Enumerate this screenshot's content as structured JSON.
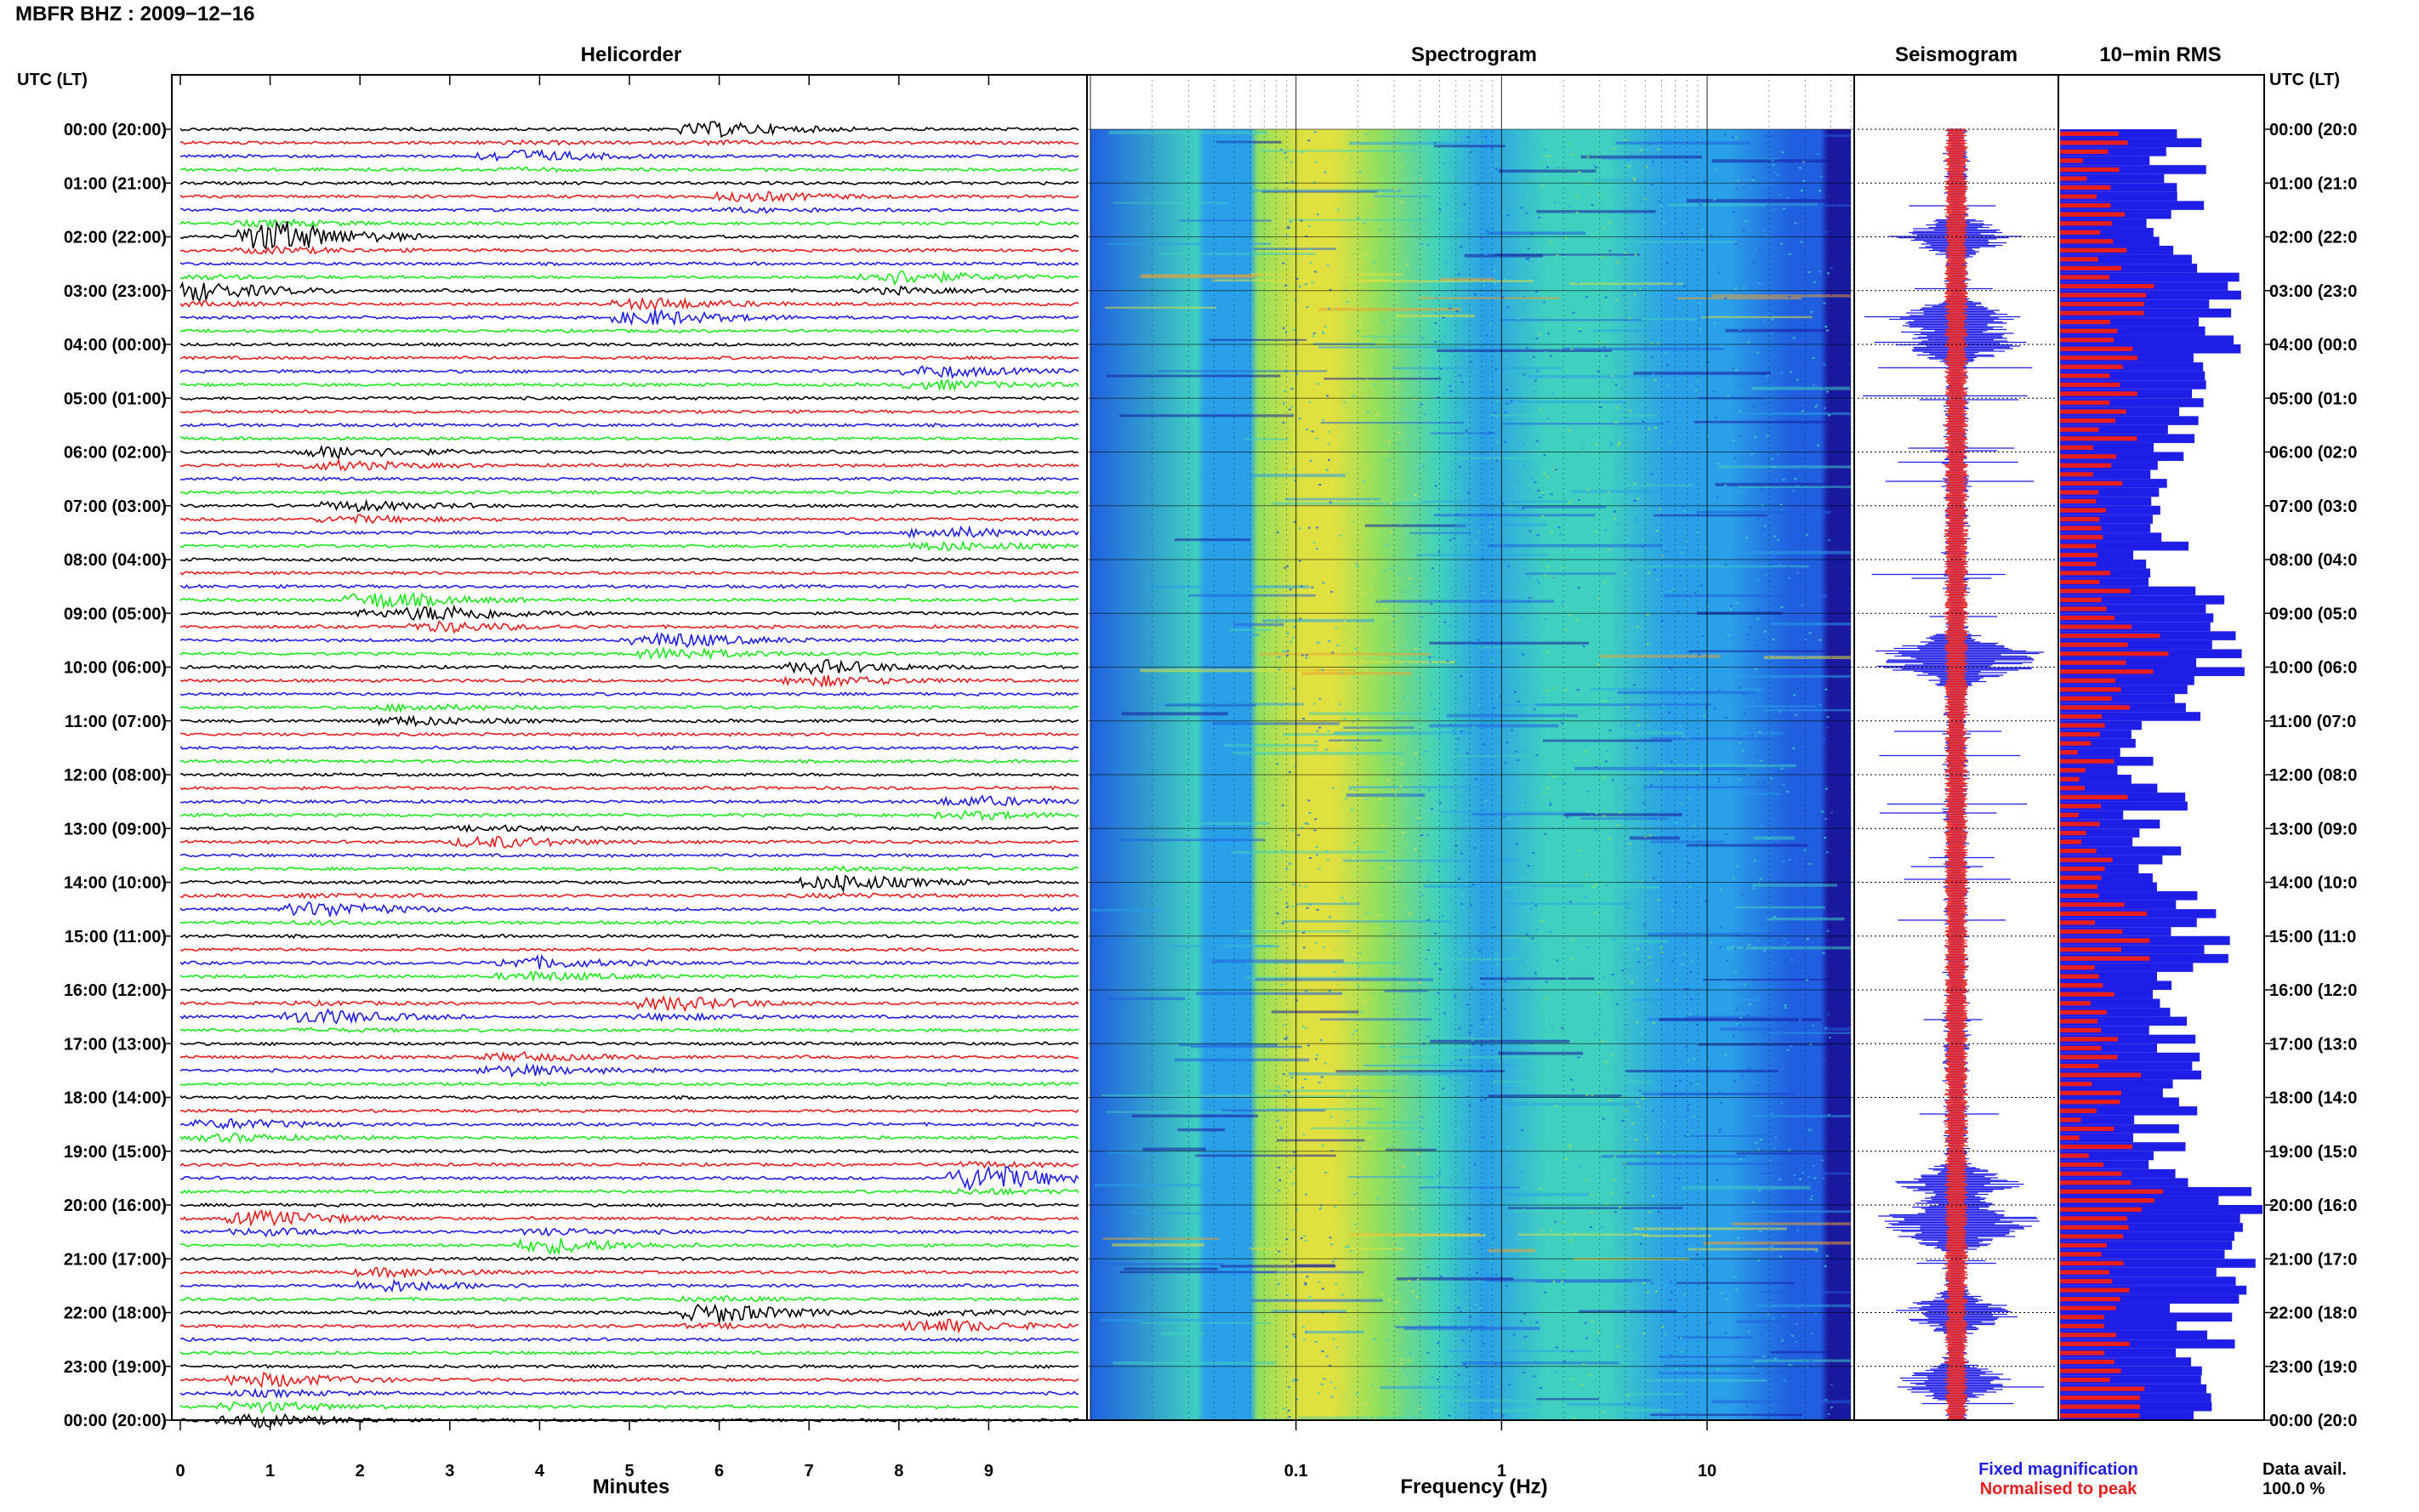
{
  "header": {
    "title": "MBFR BHZ : 2009−12−16"
  },
  "axis_time_label": "UTC (LT)",
  "panels": {
    "helicorder": "Helicorder",
    "spectrogram": "Spectrogram",
    "seismogram": "Seismogram",
    "rms": "10−min RMS"
  },
  "legend": {
    "fixed": "Fixed magnification",
    "normalised": "Normalised to peak",
    "fixed_color": "#1e1ee6",
    "normalised_color": "#e61e1e"
  },
  "data_avail": {
    "label": "Data avail.",
    "value": "100.0 %"
  },
  "chart_data": [
    {
      "type": "helicorder",
      "title": "Helicorder",
      "xlabel": "Minutes",
      "xticks": [
        "0",
        "1",
        "2",
        "3",
        "4",
        "5",
        "6",
        "7",
        "8",
        "9"
      ],
      "xlim": [
        0,
        10
      ],
      "line_colors": [
        "#000000",
        "#e61e1e",
        "#1e1ee6",
        "#1ee61e"
      ],
      "hour_labels": [
        "00:00 (20:00)",
        "01:00 (21:00)",
        "02:00 (22:00)",
        "03:00 (23:00)",
        "04:00 (00:00)",
        "05:00 (01:00)",
        "06:00 (02:00)",
        "07:00 (03:00)",
        "08:00 (04:00)",
        "09:00 (05:00)",
        "10:00 (06:00)",
        "11:00 (07:00)",
        "12:00 (08:00)",
        "13:00 (09:00)",
        "14:00 (10:00)",
        "15:00 (11:00)",
        "16:00 (12:00)",
        "17:00 (13:00)",
        "18:00 (14:00)",
        "19:00 (15:00)",
        "20:00 (16:00)",
        "21:00 (17:00)",
        "22:00 (18:00)",
        "23:00 (19:00)",
        "00:00 (20:00)"
      ],
      "right_hour_labels": [
        "00:00 (20:0",
        "01:00 (21:0",
        "02:00 (22:0",
        "03:00 (23:0",
        "04:00 (00:0",
        "05:00 (01:0",
        "06:00 (02:0",
        "07:00 (03:0",
        "08:00 (04:0",
        "09:00 (05:0",
        "10:00 (06:0",
        "11:00 (07:0",
        "12:00 (08:0",
        "13:00 (09:0",
        "14:00 (10:0",
        "15:00 (11:0",
        "16:00 (12:0",
        "17:00 (13:0",
        "18:00 (14:0",
        "19:00 (15:0",
        "20:00 (16:0",
        "21:00 (17:0",
        "22:00 (18:0",
        "23:00 (19:0",
        "00:00 (20:0"
      ],
      "events": [
        {
          "hour": 0.0,
          "minute": 6.0,
          "amp": 2.5
        },
        {
          "hour": 0.5,
          "minute": 3.8,
          "amp": 2.2
        },
        {
          "hour": 1.3,
          "minute": 6.4,
          "amp": 2.0
        },
        {
          "hour": 2.0,
          "minute": 1.1,
          "amp": 6.0
        },
        {
          "hour": 2.8,
          "minute": 8.0,
          "amp": 3.0
        },
        {
          "hour": 3.0,
          "minute": 0.2,
          "amp": 3.5
        },
        {
          "hour": 3.4,
          "minute": 5.3,
          "amp": 4.0
        },
        {
          "hour": 4.6,
          "minute": 8.5,
          "amp": 3.0
        },
        {
          "hour": 6.1,
          "minute": 1.8,
          "amp": 3.2
        },
        {
          "hour": 7.1,
          "minute": 2.0,
          "amp": 2.5
        },
        {
          "hour": 7.6,
          "minute": 8.6,
          "amp": 2.8
        },
        {
          "hour": 8.8,
          "minute": 2.3,
          "amp": 3.5
        },
        {
          "hour": 9.1,
          "minute": 3.0,
          "amp": 3.5
        },
        {
          "hour": 9.6,
          "minute": 5.5,
          "amp": 4.0
        },
        {
          "hour": 10.1,
          "minute": 7.2,
          "amp": 3.5
        },
        {
          "hour": 10.9,
          "minute": 2.6,
          "amp": 2.2
        },
        {
          "hour": 12.6,
          "minute": 8.9,
          "amp": 2.5
        },
        {
          "hour": 13.2,
          "minute": 3.5,
          "amp": 2.5
        },
        {
          "hour": 14.0,
          "minute": 7.4,
          "amp": 3.0
        },
        {
          "hour": 14.5,
          "minute": 1.6,
          "amp": 2.8
        },
        {
          "hour": 15.6,
          "minute": 4.0,
          "amp": 3.0
        },
        {
          "hour": 16.3,
          "minute": 5.5,
          "amp": 3.0
        },
        {
          "hour": 16.5,
          "minute": 1.6,
          "amp": 2.5
        },
        {
          "hour": 17.4,
          "minute": 3.8,
          "amp": 2.8
        },
        {
          "hour": 18.6,
          "minute": 0.6,
          "amp": 2.5
        },
        {
          "hour": 19.5,
          "minute": 9.0,
          "amp": 5.0
        },
        {
          "hour": 20.3,
          "minute": 1.0,
          "amp": 3.2
        },
        {
          "hour": 20.7,
          "minute": 4.2,
          "amp": 3.2
        },
        {
          "hour": 21.4,
          "minute": 2.4,
          "amp": 3.0
        },
        {
          "hour": 22.0,
          "minute": 6.0,
          "amp": 3.5
        },
        {
          "hour": 22.2,
          "minute": 8.5,
          "amp": 2.8
        },
        {
          "hour": 23.3,
          "minute": 1.0,
          "amp": 3.0
        },
        {
          "hour": 23.9,
          "minute": 0.9,
          "amp": 3.5
        }
      ]
    },
    {
      "type": "heatmap",
      "title": "Spectrogram",
      "xlabel": "Frequency (Hz)",
      "xscale": "log",
      "xlim": [
        0.01,
        50
      ],
      "xticks": [
        0.1,
        1,
        10
      ],
      "xtick_labels": [
        "0.1",
        "1",
        "10"
      ],
      "colormap": [
        "#1a1aa0",
        "#2060e0",
        "#2aa0e8",
        "#40d0c0",
        "#90e060",
        "#e0e040",
        "#f0a030"
      ],
      "peak_band_hz": [
        0.15,
        0.4
      ],
      "secondary_band_hz": [
        1.5,
        6
      ],
      "noisy_hours": [
        2.5,
        3.5,
        9.7,
        10.1,
        20.2,
        21.0
      ]
    },
    {
      "type": "line",
      "title": "Seismogram",
      "series": [
        {
          "name": "Fixed magnification",
          "color": "#1e1ee6"
        },
        {
          "name": "Normalised to peak",
          "color": "#e61e1e"
        }
      ],
      "peak_hours": [
        2.0,
        3.5,
        4.0,
        9.7,
        10.0,
        19.6,
        20.2,
        20.5,
        22.0,
        23.3
      ]
    },
    {
      "type": "bar",
      "title": "10−min RMS",
      "orientation": "horizontal",
      "series": [
        {
          "name": "Fixed magnification",
          "color": "#1e1ee6"
        },
        {
          "name": "Normalised to peak",
          "color": "#e61e1e"
        }
      ],
      "bins_per_hour": 6,
      "hourly_rms": [
        0.62,
        0.58,
        0.6,
        0.82,
        0.78,
        0.55,
        0.52,
        0.5,
        0.48,
        0.72,
        0.86,
        0.48,
        0.42,
        0.5,
        0.58,
        0.72,
        0.6,
        0.62,
        0.5,
        0.55,
        0.92,
        0.8,
        0.7,
        0.68,
        0.6
      ]
    }
  ]
}
